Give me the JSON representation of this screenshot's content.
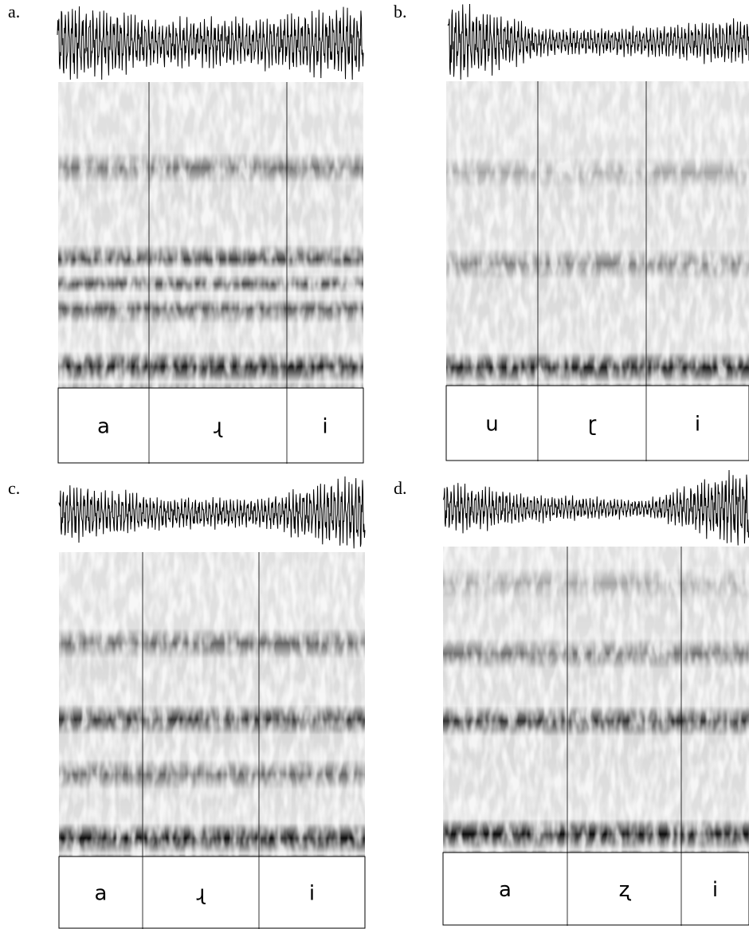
{
  "panels": [
    {
      "label": "a.",
      "segments": [
        "a",
        "ɻ",
        "i"
      ]
    },
    {
      "label": "b.",
      "segments": [
        "u",
        "ɽ",
        "i"
      ]
    },
    {
      "label": "c.",
      "segments": [
        "a",
        "ɻ",
        "i"
      ]
    },
    {
      "label": "d.",
      "segments": [
        "a",
        "ʐ",
        "i"
      ]
    }
  ]
}
